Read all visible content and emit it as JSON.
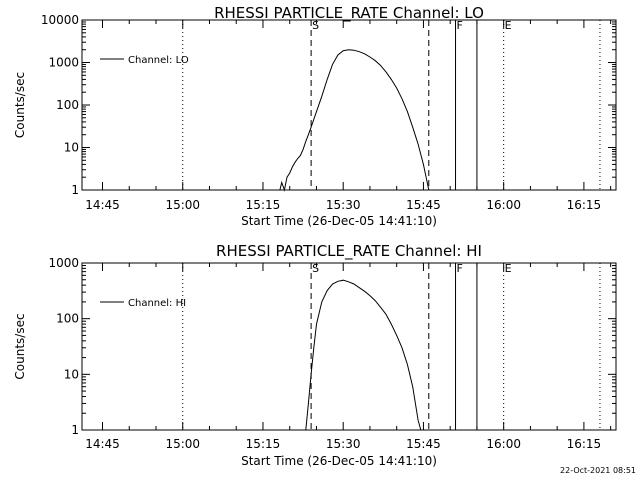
{
  "chart_data": [
    {
      "type": "line",
      "title": "RHESSI PARTICLE_RATE Channel: LO",
      "xlabel": "Start Time (26-Dec-05 14:41:10)",
      "ylabel": "Counts/sec",
      "yscale": "log",
      "ylim": [
        1,
        10000
      ],
      "yticks": [
        "1",
        "10",
        "100",
        "1000",
        "10000"
      ],
      "xticks": [
        "14:45",
        "15:00",
        "15:15",
        "15:30",
        "15:45",
        "16:00",
        "16:15"
      ],
      "legend": {
        "label": "Channel: LO",
        "placement": "top-left"
      },
      "series": [
        {
          "name": "Channel: LO",
          "x": [
            "15:18:10",
            "15:18:30",
            "15:19:00",
            "15:19:30",
            "15:20:00",
            "15:20:30",
            "15:21:00",
            "15:21:30",
            "15:22:00",
            "15:22:30",
            "15:23:00",
            "15:23:30",
            "15:24:00",
            "15:25:00",
            "15:26:00",
            "15:27:00",
            "15:28:00",
            "15:29:00",
            "15:30:00",
            "15:31:00",
            "15:32:00",
            "15:33:00",
            "15:34:00",
            "15:35:00",
            "15:36:00",
            "15:37:00",
            "15:38:00",
            "15:39:00",
            "15:40:00",
            "15:41:00",
            "15:42:00",
            "15:43:00",
            "15:44:00",
            "15:45:00",
            "15:45:30",
            "15:46:00"
          ],
          "y": [
            1,
            1.5,
            1,
            2,
            2.5,
            3.5,
            4.5,
            5.5,
            6.5,
            9,
            14,
            20,
            30,
            70,
            160,
            400,
            900,
            1500,
            1900,
            2000,
            1950,
            1800,
            1600,
            1350,
            1100,
            850,
            600,
            400,
            250,
            140,
            70,
            30,
            12,
            4,
            2,
            1
          ]
        }
      ],
      "verticals": [
        {
          "label": "",
          "time": "15:00",
          "style": "dotted"
        },
        {
          "label": "S",
          "time": "15:24",
          "style": "dashed"
        },
        {
          "label": "",
          "time": "15:46",
          "style": "dashed"
        },
        {
          "label": "F",
          "time": "15:51",
          "style": "solid"
        },
        {
          "label": "",
          "time": "15:55",
          "style": "solid"
        },
        {
          "label": "E",
          "time": "16:00",
          "style": "dotted"
        },
        {
          "label": "",
          "time": "16:18",
          "style": "dotted"
        }
      ]
    },
    {
      "type": "line",
      "title": "RHESSI PARTICLE_RATE Channel: HI",
      "xlabel": "Start Time (26-Dec-05 14:41:10)",
      "ylabel": "Counts/sec",
      "yscale": "log",
      "ylim": [
        1,
        1000
      ],
      "yticks": [
        "1",
        "10",
        "100",
        "1000"
      ],
      "xticks": [
        "14:45",
        "15:00",
        "15:15",
        "15:30",
        "15:45",
        "16:00",
        "16:15"
      ],
      "legend": {
        "label": "Channel: HI",
        "placement": "top-left"
      },
      "series": [
        {
          "name": "Channel: HI",
          "x": [
            "15:23:00",
            "15:23:30",
            "15:24:00",
            "15:24:30",
            "15:25:00",
            "15:26:00",
            "15:27:00",
            "15:28:00",
            "15:29:00",
            "15:30:00",
            "15:31:00",
            "15:32:00",
            "15:33:00",
            "15:34:00",
            "15:35:00",
            "15:36:00",
            "15:37:00",
            "15:38:00",
            "15:39:00",
            "15:40:00",
            "15:41:00",
            "15:42:00",
            "15:43:00",
            "15:43:30",
            "15:44:00",
            "15:44:30"
          ],
          "y": [
            1,
            3,
            10,
            30,
            80,
            200,
            320,
            420,
            470,
            490,
            460,
            420,
            360,
            310,
            260,
            210,
            160,
            120,
            80,
            50,
            30,
            15,
            6,
            3,
            1.5,
            1
          ]
        }
      ],
      "verticals": [
        {
          "label": "",
          "time": "15:00",
          "style": "dotted"
        },
        {
          "label": "S",
          "time": "15:24",
          "style": "dashed"
        },
        {
          "label": "",
          "time": "15:46",
          "style": "dashed"
        },
        {
          "label": "F",
          "time": "15:51",
          "style": "solid"
        },
        {
          "label": "",
          "time": "15:55",
          "style": "solid"
        },
        {
          "label": "E",
          "time": "16:00",
          "style": "dotted"
        },
        {
          "label": "",
          "time": "16:18",
          "style": "dotted"
        }
      ]
    }
  ],
  "footer": {
    "timestamp": "22-Oct-2021 08:51"
  }
}
